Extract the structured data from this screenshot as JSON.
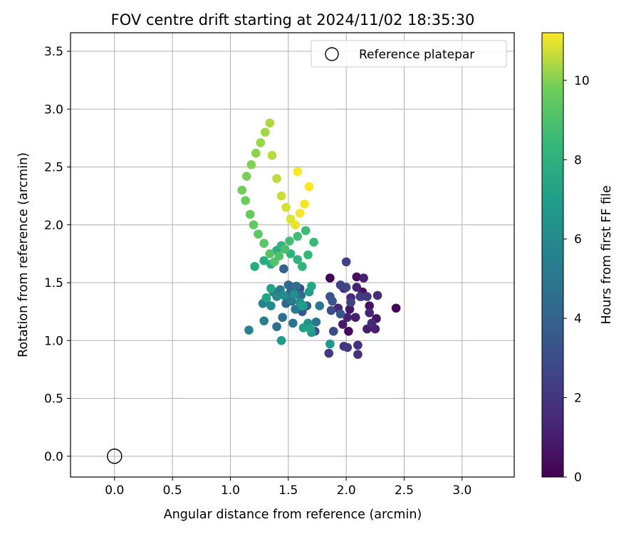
{
  "chart_data": {
    "type": "scatter",
    "title": "FOV centre drift starting at 2024/11/02 18:35:30",
    "xlabel": "Angular distance from reference (arcmin)",
    "ylabel": "Rotation from reference (arcmin)",
    "xlim": [
      -0.38,
      3.45
    ],
    "ylim": [
      -0.18,
      3.66
    ],
    "xticks": [
      "0.0",
      "0.5",
      "1.0",
      "1.5",
      "2.0",
      "2.5",
      "3.0"
    ],
    "yticks": [
      "0.0",
      "0.5",
      "1.0",
      "1.5",
      "2.0",
      "2.5",
      "3.0",
      "3.5"
    ],
    "grid": true,
    "legend": {
      "position": "top-right",
      "entries": [
        "Reference platepar"
      ]
    },
    "colorbar": {
      "label": "Hours from first FF file",
      "min": 0,
      "max": 11.2,
      "ticks": [
        "0",
        "2",
        "4",
        "6",
        "8",
        "10"
      ],
      "colormap": "viridis"
    },
    "reference_point": {
      "x": 0.0,
      "y": 0.0,
      "label": "Reference platepar"
    },
    "series": [
      {
        "columns": [
          "x",
          "y",
          "hours"
        ],
        "points": [
          [
            1.86,
            1.54,
            0.1
          ],
          [
            2.43,
            1.28,
            0.2
          ],
          [
            2.02,
            1.08,
            0.3
          ],
          [
            2.09,
            1.55,
            0.5
          ],
          [
            2.14,
            1.42,
            0.6
          ],
          [
            2.2,
            1.3,
            0.6
          ],
          [
            2.26,
            1.19,
            0.7
          ],
          [
            2.03,
            1.27,
            0.8
          ],
          [
            1.97,
            1.14,
            0.9
          ],
          [
            2.13,
            1.38,
            0.9
          ],
          [
            2.08,
            1.2,
            1.0
          ],
          [
            2.18,
            1.1,
            1.0
          ],
          [
            2.25,
            1.1,
            1.1
          ],
          [
            2.15,
            1.54,
            1.1
          ],
          [
            2.09,
            1.46,
            1.2
          ],
          [
            2.01,
            1.2,
            1.2
          ],
          [
            2.2,
            1.24,
            1.3
          ],
          [
            1.93,
            1.28,
            1.4
          ],
          [
            2.04,
            1.37,
            1.4
          ],
          [
            1.98,
            1.45,
            1.5
          ],
          [
            2.22,
            1.15,
            1.5
          ],
          [
            2.27,
            1.39,
            1.6
          ],
          [
            2.1,
            0.88,
            1.7
          ],
          [
            2.1,
            0.96,
            1.8
          ],
          [
            1.98,
            0.95,
            1.9
          ],
          [
            2.01,
            0.94,
            2.0
          ],
          [
            1.85,
            0.89,
            2.1
          ],
          [
            2.18,
            1.38,
            2.2
          ],
          [
            2.12,
            1.38,
            2.3
          ],
          [
            2.04,
            1.33,
            2.4
          ],
          [
            2.0,
            1.68,
            2.5
          ],
          [
            1.95,
            1.48,
            2.6
          ],
          [
            2.0,
            1.46,
            2.7
          ],
          [
            1.87,
            1.26,
            2.8
          ],
          [
            1.89,
            1.08,
            2.9
          ],
          [
            1.6,
            1.45,
            3.0
          ],
          [
            1.73,
            1.08,
            3.1
          ],
          [
            1.86,
            1.38,
            3.2
          ],
          [
            1.95,
            1.23,
            3.3
          ],
          [
            1.88,
            1.34,
            3.4
          ],
          [
            1.62,
            1.25,
            3.5
          ],
          [
            1.66,
            1.3,
            3.6
          ],
          [
            1.57,
            1.4,
            3.7
          ],
          [
            1.46,
            1.62,
            3.8
          ],
          [
            1.52,
            1.42,
            3.9
          ],
          [
            1.54,
            1.46,
            4.0
          ],
          [
            1.48,
            1.32,
            4.1
          ],
          [
            1.5,
            1.48,
            4.2
          ],
          [
            1.53,
            1.34,
            4.3
          ],
          [
            1.61,
            1.39,
            4.4
          ],
          [
            1.57,
            1.47,
            4.5
          ],
          [
            1.45,
            1.2,
            4.6
          ],
          [
            1.4,
            1.12,
            4.7
          ],
          [
            1.54,
            1.15,
            4.8
          ],
          [
            1.74,
            1.16,
            4.9
          ],
          [
            1.77,
            1.3,
            5.0
          ],
          [
            1.56,
            1.27,
            5.1
          ],
          [
            1.52,
            1.35,
            5.2
          ],
          [
            1.43,
            1.44,
            5.3
          ],
          [
            1.37,
            1.42,
            5.4
          ],
          [
            1.29,
            1.17,
            5.5
          ],
          [
            1.16,
            1.09,
            5.6
          ],
          [
            1.28,
            1.32,
            5.7
          ],
          [
            1.31,
            1.36,
            5.8
          ],
          [
            1.35,
            1.3,
            5.9
          ],
          [
            1.4,
            1.38,
            6.0
          ],
          [
            1.46,
            1.39,
            6.1
          ],
          [
            1.55,
            1.4,
            6.2
          ],
          [
            1.6,
            1.33,
            6.3
          ],
          [
            1.63,
            1.3,
            6.4
          ],
          [
            1.67,
            1.15,
            6.5
          ],
          [
            1.7,
            1.07,
            6.6
          ],
          [
            1.86,
            0.97,
            6.7
          ],
          [
            1.44,
            1.0,
            6.8
          ],
          [
            1.68,
            1.42,
            6.9
          ],
          [
            1.62,
            1.3,
            7.0
          ],
          [
            1.63,
            1.11,
            7.1
          ],
          [
            1.69,
            1.1,
            7.2
          ],
          [
            1.35,
            1.45,
            7.3
          ],
          [
            1.31,
            1.37,
            7.4
          ],
          [
            1.7,
            1.47,
            7.5
          ],
          [
            1.21,
            1.64,
            7.6
          ],
          [
            1.29,
            1.69,
            7.7
          ],
          [
            1.35,
            1.66,
            7.8
          ],
          [
            1.4,
            1.78,
            7.9
          ],
          [
            1.44,
            1.82,
            8.0
          ],
          [
            1.52,
            1.75,
            8.1
          ],
          [
            1.58,
            1.7,
            8.2
          ],
          [
            1.62,
            1.64,
            8.3
          ],
          [
            1.67,
            1.74,
            8.4
          ],
          [
            1.72,
            1.85,
            8.5
          ],
          [
            1.65,
            1.95,
            8.6
          ],
          [
            1.58,
            1.9,
            8.7
          ],
          [
            1.51,
            1.86,
            8.8
          ],
          [
            1.47,
            1.79,
            8.9
          ],
          [
            1.42,
            1.73,
            9.0
          ],
          [
            1.38,
            1.68,
            9.1
          ],
          [
            1.34,
            1.75,
            9.2
          ],
          [
            1.29,
            1.84,
            9.3
          ],
          [
            1.24,
            1.92,
            9.4
          ],
          [
            1.2,
            2.0,
            9.5
          ],
          [
            1.17,
            2.09,
            9.6
          ],
          [
            1.13,
            2.21,
            9.7
          ],
          [
            1.1,
            2.3,
            9.8
          ],
          [
            1.14,
            2.42,
            9.9
          ],
          [
            1.18,
            2.52,
            10.0
          ],
          [
            1.22,
            2.62,
            10.1
          ],
          [
            1.26,
            2.71,
            10.2
          ],
          [
            1.3,
            2.8,
            10.3
          ],
          [
            1.34,
            2.88,
            10.4
          ],
          [
            1.36,
            2.6,
            10.5
          ],
          [
            1.4,
            2.4,
            10.6
          ],
          [
            1.44,
            2.25,
            10.7
          ],
          [
            1.48,
            2.15,
            10.8
          ],
          [
            1.52,
            2.05,
            10.9
          ],
          [
            1.56,
            2.0,
            11.0
          ],
          [
            1.6,
            2.1,
            11.1
          ],
          [
            1.64,
            2.18,
            11.1
          ],
          [
            1.68,
            2.33,
            11.2
          ],
          [
            1.58,
            2.46,
            11.2
          ]
        ]
      }
    ]
  }
}
